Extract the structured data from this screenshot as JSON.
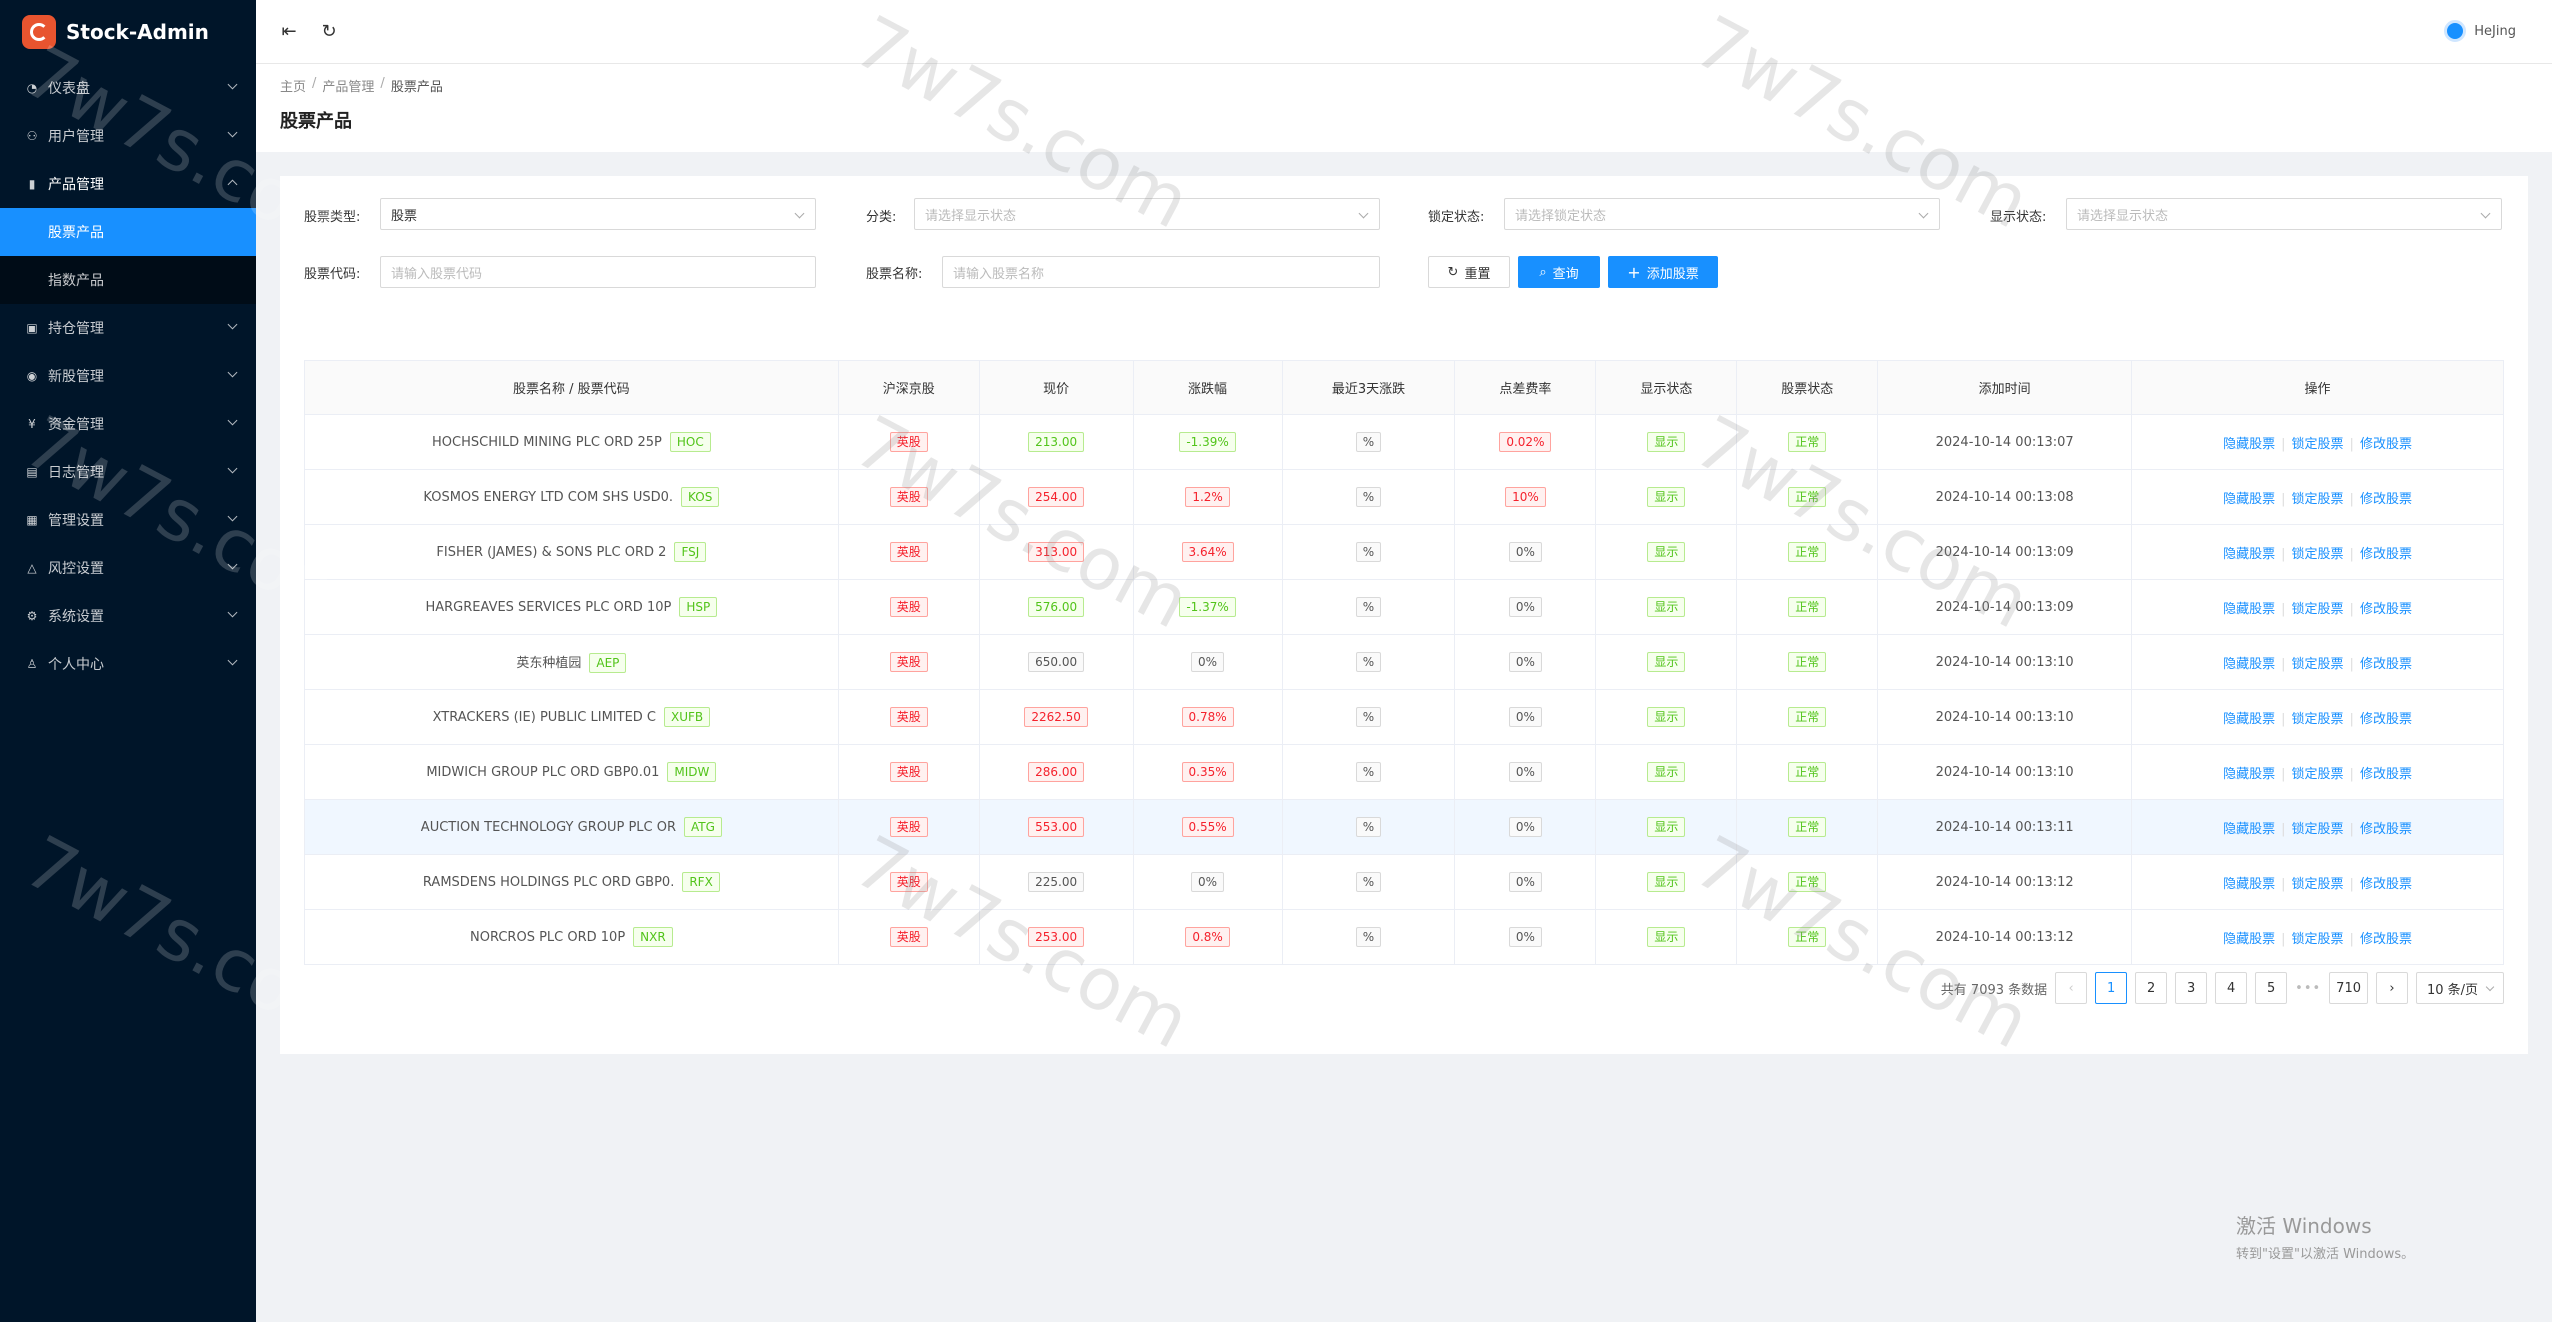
{
  "app": {
    "title": "Stock-Admin"
  },
  "sidebar": {
    "items": [
      {
        "label": "仪表盘",
        "icon": "dashboard-icon",
        "glyph": "◔"
      },
      {
        "label": "用户管理",
        "icon": "users-icon",
        "glyph": "⚇"
      },
      {
        "label": "产品管理",
        "icon": "chart-icon",
        "glyph": "▮"
      },
      {
        "label": "持仓管理",
        "icon": "position-icon",
        "glyph": "▣"
      },
      {
        "label": "新股管理",
        "icon": "broadcast-icon",
        "glyph": "◉"
      },
      {
        "label": "资金管理",
        "icon": "money-icon",
        "glyph": "¥"
      },
      {
        "label": "日志管理",
        "icon": "log-icon",
        "glyph": "▤"
      },
      {
        "label": "管理设置",
        "icon": "settings-panel-icon",
        "glyph": "▦"
      },
      {
        "label": "风控设置",
        "icon": "warning-icon",
        "glyph": "△"
      },
      {
        "label": "系统设置",
        "icon": "gear-icon",
        "glyph": "⚙"
      },
      {
        "label": "个人中心",
        "icon": "user-icon",
        "glyph": "♙"
      }
    ],
    "sub_items": [
      "股票产品",
      "指数产品"
    ]
  },
  "header": {
    "username": "HeJing"
  },
  "breadcrumb": [
    "主页",
    "产品管理",
    "股票产品"
  ],
  "page_title": "股票产品",
  "filters": {
    "stock_type_label": "股票类型:",
    "stock_type_value": "股票",
    "category_label": "分类:",
    "category_placeholder": "请选择显示状态",
    "lock_label": "锁定状态:",
    "lock_placeholder": "请选择锁定状态",
    "display_label": "显示状态:",
    "display_placeholder": "请选择显示状态",
    "code_label": "股票代码:",
    "code_placeholder": "请输入股票代码",
    "name_label": "股票名称:",
    "name_placeholder": "请输入股票名称",
    "reset": "重置",
    "search": "查询",
    "add": "添加股票"
  },
  "table": {
    "headers": [
      "股票名称 / 股票代码",
      "沪深京股",
      "现价",
      "涨跌幅",
      "最近3天涨跌",
      "点差费率",
      "显示状态",
      "股票状态",
      "添加时间",
      "操作"
    ],
    "actions": [
      "隐藏股票",
      "锁定股票",
      "修改股票"
    ],
    "rows": [
      {
        "name": "HOCHSCHILD MINING PLC ORD 25P",
        "code": "HOC",
        "market": "英股",
        "price": "213.00",
        "price_color": "green",
        "change": "-1.39%",
        "change_color": "green",
        "d3": "%",
        "spread": "0.02%",
        "spread_color": "red",
        "display": "显示",
        "status": "正常",
        "time": "2024-10-14 00:13:07"
      },
      {
        "name": "KOSMOS ENERGY LTD COM SHS USD0.",
        "code": "KOS",
        "market": "英股",
        "price": "254.00",
        "price_color": "red",
        "change": "1.2%",
        "change_color": "red",
        "d3": "%",
        "spread": "10%",
        "spread_color": "red",
        "display": "显示",
        "status": "正常",
        "time": "2024-10-14 00:13:08"
      },
      {
        "name": "FISHER (JAMES) & SONS PLC ORD 2",
        "code": "FSJ",
        "market": "英股",
        "price": "313.00",
        "price_color": "red",
        "change": "3.64%",
        "change_color": "red",
        "d3": "%",
        "spread": "0%",
        "spread_color": "gray",
        "display": "显示",
        "status": "正常",
        "time": "2024-10-14 00:13:09"
      },
      {
        "name": "HARGREAVES SERVICES PLC ORD 10P",
        "code": "HSP",
        "market": "英股",
        "price": "576.00",
        "price_color": "green",
        "change": "-1.37%",
        "change_color": "green",
        "d3": "%",
        "spread": "0%",
        "spread_color": "gray",
        "display": "显示",
        "status": "正常",
        "time": "2024-10-14 00:13:09"
      },
      {
        "name": "英东种植园",
        "code": "AEP",
        "market": "英股",
        "price": "650.00",
        "price_color": "gray",
        "change": "0%",
        "change_color": "gray",
        "d3": "%",
        "spread": "0%",
        "spread_color": "gray",
        "display": "显示",
        "status": "正常",
        "time": "2024-10-14 00:13:10"
      },
      {
        "name": "XTRACKERS (IE) PUBLIC LIMITED C",
        "code": "XUFB",
        "market": "英股",
        "price": "2262.50",
        "price_color": "red",
        "change": "0.78%",
        "change_color": "red",
        "d3": "%",
        "spread": "0%",
        "spread_color": "gray",
        "display": "显示",
        "status": "正常",
        "time": "2024-10-14 00:13:10"
      },
      {
        "name": "MIDWICH GROUP PLC ORD GBP0.01",
        "code": "MIDW",
        "market": "英股",
        "price": "286.00",
        "price_color": "red",
        "change": "0.35%",
        "change_color": "red",
        "d3": "%",
        "spread": "0%",
        "spread_color": "gray",
        "display": "显示",
        "status": "正常",
        "time": "2024-10-14 00:13:10"
      },
      {
        "name": "AUCTION TECHNOLOGY GROUP PLC OR",
        "code": "ATG",
        "market": "英股",
        "price": "553.00",
        "price_color": "red",
        "change": "0.55%",
        "change_color": "red",
        "d3": "%",
        "spread": "0%",
        "spread_color": "gray",
        "display": "显示",
        "status": "正常",
        "time": "2024-10-14 00:13:11"
      },
      {
        "name": "RAMSDENS HOLDINGS PLC ORD GBP0.",
        "code": "RFX",
        "market": "英股",
        "price": "225.00",
        "price_color": "gray",
        "change": "0%",
        "change_color": "gray",
        "d3": "%",
        "spread": "0%",
        "spread_color": "gray",
        "display": "显示",
        "status": "正常",
        "time": "2024-10-14 00:13:12"
      },
      {
        "name": "NORCROS PLC ORD 10P",
        "code": "NXR",
        "market": "英股",
        "price": "253.00",
        "price_color": "red",
        "change": "0.8%",
        "change_color": "red",
        "d3": "%",
        "spread": "0%",
        "spread_color": "gray",
        "display": "显示",
        "status": "正常",
        "time": "2024-10-14 00:13:12"
      }
    ]
  },
  "pagination": {
    "total_text": "共有 7093 条数据",
    "prev": "‹",
    "pages": [
      "1",
      "2",
      "3",
      "4",
      "5"
    ],
    "ellipsis": "•••",
    "last": "710",
    "next": "›",
    "page_size": "10 条/页"
  },
  "watermark": {
    "text": "7w7s.com"
  },
  "windows": {
    "line1": "激活 Windows",
    "line2": "转到\"设置\"以激活 Windows。"
  },
  "colors": {
    "accent": "#1890ff",
    "sidebar_bg": "#001529",
    "up": "#f5222d",
    "down": "#52c41a"
  }
}
